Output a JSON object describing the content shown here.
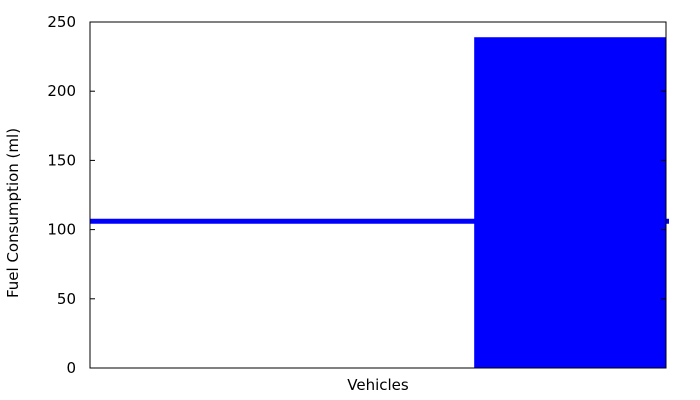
{
  "chart_data": {
    "type": "bar",
    "xlabel": "Vehicles",
    "ylabel": "Fuel Consumption (ml)",
    "ylim": [
      0,
      250
    ],
    "yticks": [
      0,
      50,
      100,
      150,
      200,
      250
    ],
    "grid": false,
    "legend": "none",
    "bar": {
      "value": 239,
      "x_extent": [
        0.667,
        1.0
      ],
      "color": "#0000ff"
    },
    "reference_line": {
      "value": 106,
      "color": "#0000ff"
    }
  }
}
